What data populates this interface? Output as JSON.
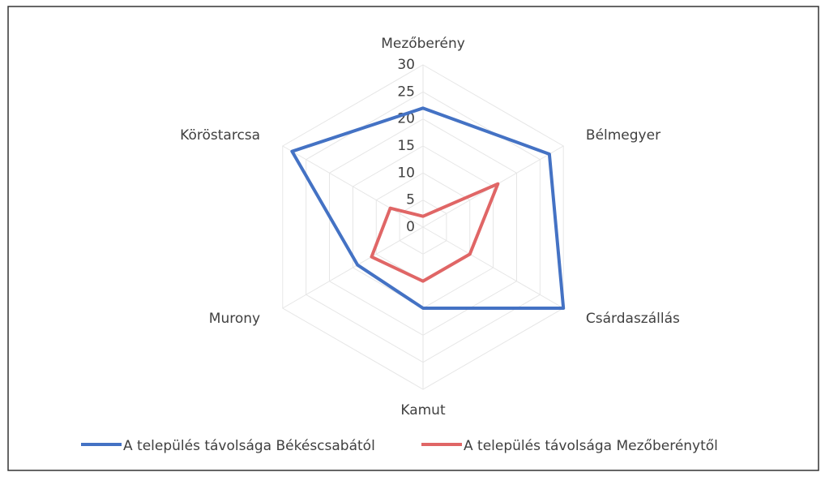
{
  "chart_data": {
    "type": "radar",
    "categories": [
      "Mezőberény",
      "Bélmegyer",
      "Csárdaszállás",
      "Kamut",
      "Murony",
      "Köröstarcsa"
    ],
    "series": [
      {
        "name": "A település távolsága Békéscsabától",
        "color": "#4472c4",
        "values": [
          22,
          27,
          30,
          15,
          14,
          28
        ]
      },
      {
        "name": "A település távolsága Mezőberénytől",
        "color": "#e06666",
        "values": [
          2,
          16,
          10,
          10,
          11,
          7
        ]
      }
    ],
    "ylim": [
      0,
      30
    ],
    "yticks": [
      0,
      5,
      10,
      15,
      20,
      25,
      30
    ],
    "grid": true,
    "legend": "bottom"
  }
}
